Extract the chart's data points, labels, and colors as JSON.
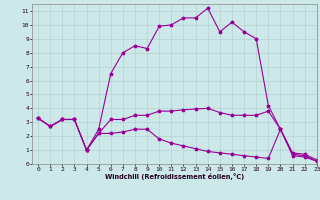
{
  "title": "",
  "xlabel": "Windchill (Refroidissement éolien,°C)",
  "background_color": "#cce8e8",
  "line_color": "#990099",
  "xlim": [
    -0.5,
    23
  ],
  "ylim": [
    0,
    11.5
  ],
  "xticks": [
    0,
    1,
    2,
    3,
    4,
    5,
    6,
    7,
    8,
    9,
    10,
    11,
    12,
    13,
    14,
    15,
    16,
    17,
    18,
    19,
    20,
    21,
    22,
    23
  ],
  "yticks": [
    0,
    1,
    2,
    3,
    4,
    5,
    6,
    7,
    8,
    9,
    10,
    11
  ],
  "line1_x": [
    0,
    1,
    2,
    3,
    4,
    5,
    6,
    7,
    8,
    9,
    10,
    11,
    12,
    13,
    14,
    15,
    16,
    17,
    18,
    19,
    20,
    21,
    22,
    23
  ],
  "line1_y": [
    3.3,
    2.7,
    3.2,
    3.2,
    1.0,
    2.5,
    6.5,
    8.0,
    8.5,
    8.3,
    9.9,
    10.0,
    10.5,
    10.5,
    11.2,
    9.5,
    10.2,
    9.5,
    9.0,
    4.2,
    2.5,
    0.8,
    0.7,
    0.3
  ],
  "line2_x": [
    0,
    1,
    2,
    3,
    4,
    5,
    6,
    7,
    8,
    9,
    10,
    11,
    12,
    13,
    14,
    15,
    16,
    17,
    18,
    19,
    20,
    21,
    22,
    23
  ],
  "line2_y": [
    3.3,
    2.7,
    3.2,
    3.2,
    1.0,
    2.2,
    3.2,
    3.2,
    3.5,
    3.5,
    3.8,
    3.8,
    3.9,
    3.95,
    4.0,
    3.7,
    3.5,
    3.5,
    3.5,
    3.8,
    2.5,
    0.7,
    0.6,
    0.2
  ],
  "line3_x": [
    0,
    1,
    2,
    3,
    4,
    5,
    6,
    7,
    8,
    9,
    10,
    11,
    12,
    13,
    14,
    15,
    16,
    17,
    18,
    19,
    20,
    21,
    22,
    23
  ],
  "line3_y": [
    3.3,
    2.7,
    3.2,
    3.2,
    1.0,
    2.2,
    2.2,
    2.3,
    2.5,
    2.5,
    1.8,
    1.5,
    1.3,
    1.1,
    0.9,
    0.8,
    0.7,
    0.6,
    0.5,
    0.4,
    2.5,
    0.6,
    0.5,
    0.2
  ]
}
